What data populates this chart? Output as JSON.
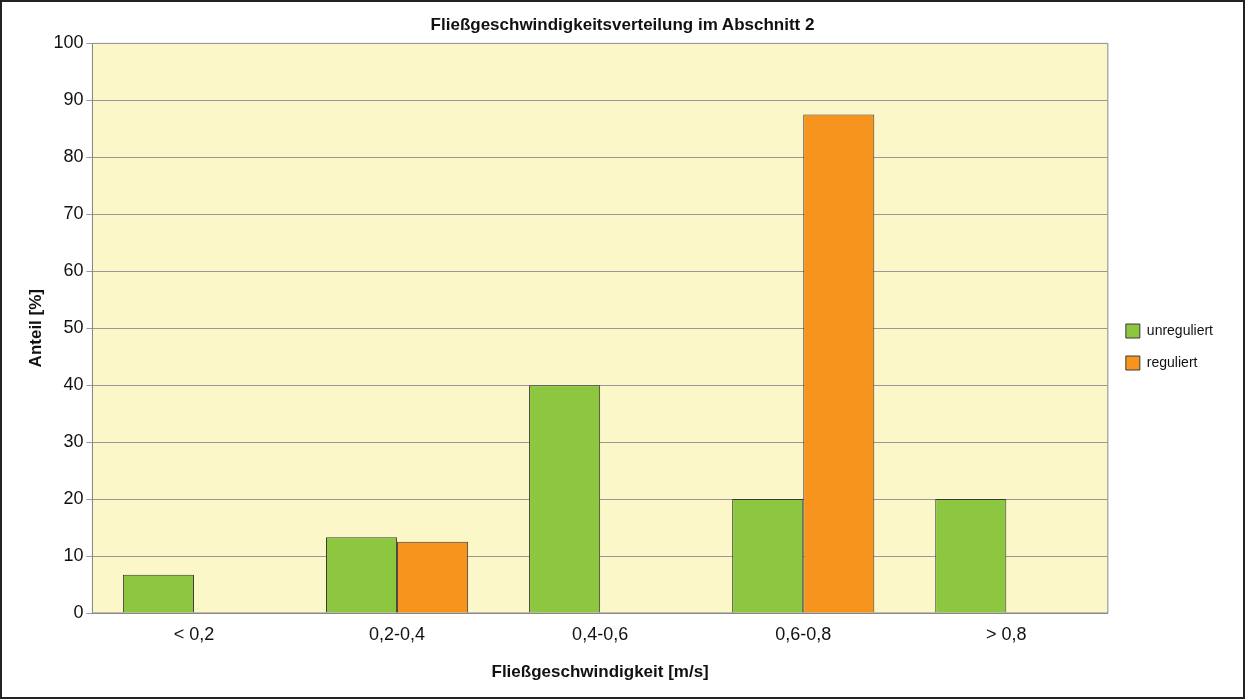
{
  "chart_data": {
    "type": "bar",
    "title": "Fließgeschwindigkeitsverteilung im Abschnitt 2",
    "xlabel": "Fließgeschwindigkeit [m/s]",
    "ylabel": "Anteil [%]",
    "categories": [
      "< 0,2",
      "0,2-0,4",
      "0,4-0,6",
      "0,6-0,8",
      "> 0,8"
    ],
    "series": [
      {
        "name": "unreguliert",
        "color": "#8dc63f",
        "values": [
          6.7,
          13.3,
          40,
          20,
          20
        ]
      },
      {
        "name": "reguliert",
        "color": "#f7941d",
        "values": [
          0,
          12.5,
          0,
          87.5,
          0
        ]
      }
    ],
    "ylim": [
      0,
      100
    ],
    "yticks": [
      0,
      10,
      20,
      30,
      40,
      50,
      60,
      70,
      80,
      90,
      100
    ],
    "grid": "y",
    "legend": "right"
  }
}
